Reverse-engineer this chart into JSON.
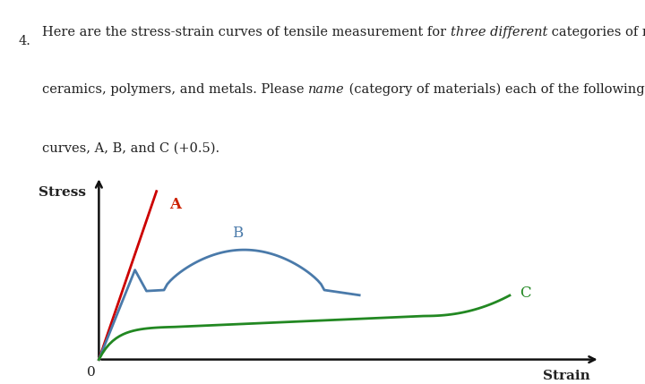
{
  "background_color": "#ffffff",
  "text_color": "#222222",
  "curve_A_color": "#cc0000",
  "curve_B_color": "#4a7aaa",
  "curve_C_color": "#228822",
  "label_A_color": "#cc2200",
  "label_B_color": "#4a7aaa",
  "label_C_color": "#228822",
  "axis_color": "#111111",
  "stress_label": "Stress",
  "strain_label": "Strain",
  "origin_label": "0",
  "label_A": "A",
  "label_B": "B",
  "label_C": "C",
  "font_size_label": 11,
  "font_size_axis": 10,
  "font_size_curve_label": 11,
  "line_width": 2.0
}
